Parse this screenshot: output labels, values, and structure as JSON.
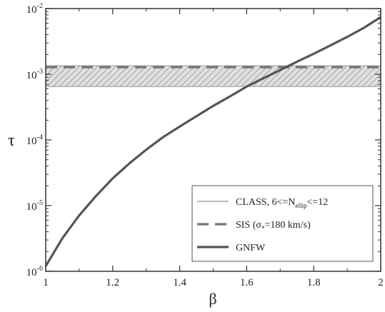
{
  "chart_data": {
    "type": "line",
    "title": "",
    "xlabel": "β",
    "ylabel": "τ",
    "xlim": [
      1,
      2
    ],
    "ylim": [
      1e-06,
      0.01
    ],
    "yscale": "log",
    "grid": false,
    "legend_position": "bottom-right",
    "x_ticks": [
      {
        "value": 1.0,
        "label": "1"
      },
      {
        "value": 1.2,
        "label": "1.2"
      },
      {
        "value": 1.4,
        "label": "1.4"
      },
      {
        "value": 1.6,
        "label": "1.6"
      },
      {
        "value": 1.8,
        "label": "1.8"
      },
      {
        "value": 2.0,
        "label": "2"
      }
    ],
    "y_ticks": [
      {
        "value": 1e-06,
        "base": "10",
        "exp": "-6"
      },
      {
        "value": 1e-05,
        "base": "10",
        "exp": "-5"
      },
      {
        "value": 0.0001,
        "base": "10",
        "exp": "-4"
      },
      {
        "value": 0.001,
        "base": "10",
        "exp": "-3"
      },
      {
        "value": 0.01,
        "base": "10",
        "exp": "-2"
      }
    ],
    "band": {
      "name": "CLASS, 6<=N_ellip<=12",
      "ymin": 0.00065,
      "ymax": 0.00135,
      "fill": "#cccccc",
      "hatch_color": "#888888",
      "edge_color": "#999999"
    },
    "series": [
      {
        "name": "SIS (σ*=180 km/s)",
        "style": "dashed",
        "color": "#777777",
        "x": [
          1.0,
          2.0
        ],
        "y": [
          0.00128,
          0.00128
        ]
      },
      {
        "name": "GNFW",
        "style": "solid",
        "color": "#555555",
        "x": [
          1.0,
          1.05,
          1.1,
          1.15,
          1.2,
          1.25,
          1.3,
          1.35,
          1.4,
          1.45,
          1.5,
          1.55,
          1.6,
          1.65,
          1.7,
          1.75,
          1.8,
          1.85,
          1.9,
          1.95,
          2.0
        ],
        "y": [
          1.2e-06,
          3.2e-06,
          7.1e-06,
          1.4e-05,
          2.6e-05,
          4.4e-05,
          7.1e-05,
          0.00011,
          0.00016,
          0.00023,
          0.00033,
          0.00046,
          0.00065,
          0.00087,
          0.00116,
          0.00155,
          0.00205,
          0.00275,
          0.0037,
          0.0051,
          0.0074
        ]
      }
    ],
    "legend": [
      {
        "kind": "band",
        "label_main": "CLASS, 6<=N",
        "label_sub": "ellip",
        "label_tail": "<=12"
      },
      {
        "kind": "dashed",
        "label_main": "SIS (σ",
        "label_sub": "*",
        "label_tail": "=180 km/s)"
      },
      {
        "kind": "solid",
        "label_main": "GNFW",
        "label_sub": "",
        "label_tail": ""
      }
    ]
  }
}
